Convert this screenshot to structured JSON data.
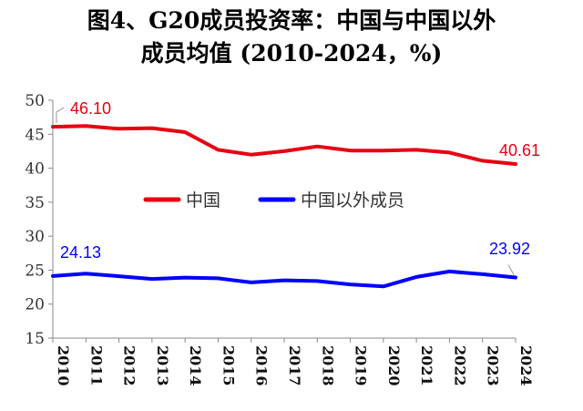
{
  "chart_data": {
    "type": "line",
    "title_line1": "图4、G20成员投资率：中国与中国以外",
    "title_line2": "成员均值 (2010-2024，%)",
    "x": [
      "2010",
      "2011",
      "2012",
      "2013",
      "2014",
      "2015",
      "2016",
      "2017",
      "2018",
      "2019",
      "2020",
      "2021",
      "2022",
      "2023",
      "2024"
    ],
    "y_ticks": [
      "15",
      "20",
      "25",
      "30",
      "35",
      "40",
      "45",
      "50"
    ],
    "ylim": [
      15,
      50
    ],
    "series": [
      {
        "name": "中国",
        "color": "#e60012",
        "values": [
          46.1,
          46.2,
          45.8,
          45.9,
          45.3,
          42.7,
          42.0,
          42.5,
          43.2,
          42.6,
          42.6,
          42.7,
          42.3,
          41.1,
          40.61
        ],
        "first_label": "46.10",
        "last_label": "40.61"
      },
      {
        "name": "中国以外成员",
        "color": "#0000ff",
        "values": [
          24.13,
          24.5,
          24.1,
          23.7,
          23.9,
          23.8,
          23.2,
          23.5,
          23.4,
          22.9,
          22.6,
          24.0,
          24.8,
          24.4,
          23.92
        ],
        "first_label": "24.13",
        "last_label": "23.92"
      }
    ],
    "legend_position": "center"
  }
}
